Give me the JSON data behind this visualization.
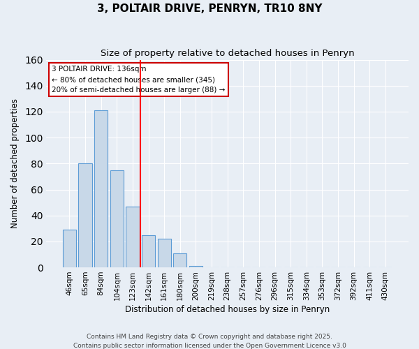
{
  "title1": "3, POLTAIR DRIVE, PENRYN, TR10 8NY",
  "title2": "Size of property relative to detached houses in Penryn",
  "xlabel": "Distribution of detached houses by size in Penryn",
  "ylabel": "Number of detached properties",
  "bar_labels": [
    "46sqm",
    "65sqm",
    "84sqm",
    "104sqm",
    "123sqm",
    "142sqm",
    "161sqm",
    "180sqm",
    "200sqm",
    "219sqm",
    "238sqm",
    "257sqm",
    "276sqm",
    "296sqm",
    "315sqm",
    "334sqm",
    "353sqm",
    "372sqm",
    "392sqm",
    "411sqm",
    "430sqm"
  ],
  "bar_values": [
    29,
    80,
    121,
    75,
    47,
    25,
    22,
    11,
    1,
    0,
    0,
    0,
    0,
    0,
    0,
    0,
    0,
    0,
    0,
    0,
    0
  ],
  "bar_color": "#c8d8e8",
  "bar_edge_color": "#5b9bd5",
  "red_line_x": 4.5,
  "annotation_title": "3 POLTAIR DRIVE: 136sqm",
  "annotation_line1": "← 80% of detached houses are smaller (345)",
  "annotation_line2": "20% of semi-detached houses are larger (88) →",
  "annotation_box_color": "#ffffff",
  "annotation_box_edge": "#cc0000",
  "ylim": [
    0,
    160
  ],
  "yticks": [
    0,
    20,
    40,
    60,
    80,
    100,
    120,
    140,
    160
  ],
  "footer1": "Contains HM Land Registry data © Crown copyright and database right 2025.",
  "footer2": "Contains public sector information licensed under the Open Government Licence v3.0",
  "background_color": "#e8eef5",
  "plot_background": "#e8eef5",
  "grid_color": "#ffffff",
  "title_fontsize": 11,
  "subtitle_fontsize": 9.5
}
